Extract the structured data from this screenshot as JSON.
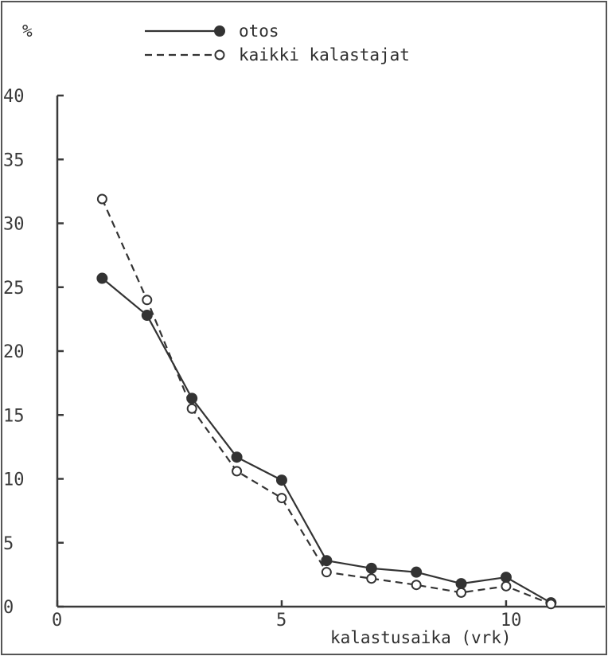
{
  "chart_data": {
    "type": "line",
    "ylabel": "%",
    "xlabel": "kalastusaika (vrk)",
    "xlim": [
      0,
      12.2
    ],
    "ylim": [
      0,
      40
    ],
    "x_ticks": [
      "0",
      "5",
      "10"
    ],
    "y_ticks": [
      "0",
      "5",
      "10",
      "15",
      "20",
      "25",
      "30",
      "35",
      "40"
    ],
    "x_tick_values": [
      0,
      5,
      10
    ],
    "y_tick_values": [
      0,
      5,
      10,
      15,
      20,
      25,
      30,
      35,
      40
    ],
    "legend_position": "top",
    "series": [
      {
        "name": "otos",
        "style": "solid",
        "marker": "filled-circle",
        "color": "#333333",
        "x": [
          1,
          2,
          3,
          4,
          5,
          6,
          7,
          8,
          9,
          10,
          11
        ],
        "y": [
          25.7,
          22.8,
          16.3,
          11.7,
          9.9,
          3.6,
          3.0,
          2.7,
          1.8,
          2.3,
          0.3
        ]
      },
      {
        "name": "kaikki kalastajat",
        "style": "dashed",
        "marker": "open-circle",
        "color": "#333333",
        "x": [
          1,
          2,
          3,
          4,
          5,
          6,
          7,
          8,
          9,
          10,
          11
        ],
        "y": [
          31.9,
          24.0,
          15.5,
          10.6,
          8.5,
          2.7,
          2.2,
          1.7,
          1.1,
          1.6,
          0.2
        ]
      }
    ]
  }
}
